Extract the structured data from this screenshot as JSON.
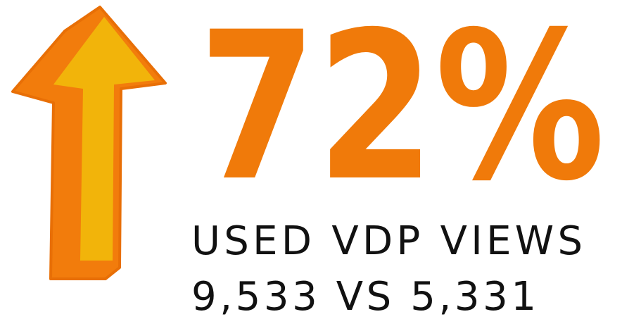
{
  "stat": {
    "headline": "72%",
    "label": "USED VDP VIEWS",
    "comparison": "9,533 VS 5,331"
  }
}
